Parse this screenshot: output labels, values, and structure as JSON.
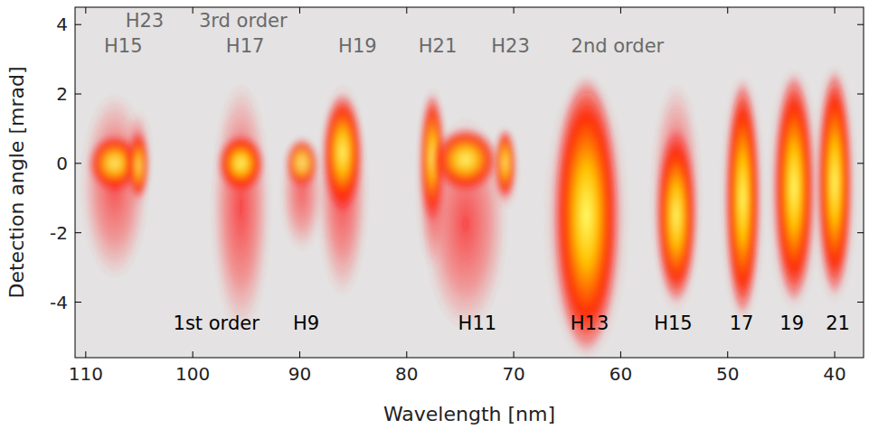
{
  "chart_data": {
    "type": "spectral_image",
    "x_label": "Wavelength [nm]",
    "y_label": "Detection angle [mrad]",
    "xlim": [
      111,
      37.3
    ],
    "ylim": [
      -5.6,
      4.5
    ],
    "xticks": [
      110,
      100,
      90,
      80,
      70,
      60,
      50,
      40
    ],
    "yticks": [
      -4,
      -2,
      0,
      2,
      4
    ],
    "peaks": [
      {
        "wavelength": 107.3,
        "width": 4,
        "angle_top": 2.0,
        "angle_bottom": -3.3,
        "core_top": 0.6,
        "core_bottom": -0.6,
        "intensity": 0.8
      },
      {
        "wavelength": 105.1,
        "width": 1.5,
        "angle_top": 1.5,
        "angle_bottom": -1.2,
        "core_top": 0.7,
        "core_bottom": -0.8,
        "intensity": 0.7
      },
      {
        "wavelength": 95.5,
        "width": 3.5,
        "angle_top": 2.3,
        "angle_bottom": -4.8,
        "core_top": 0.6,
        "core_bottom": -0.6,
        "intensity": 0.9
      },
      {
        "wavelength": 89.8,
        "width": 2.5,
        "angle_top": 0.8,
        "angle_bottom": -2.5,
        "core_top": 0.5,
        "core_bottom": -0.5,
        "intensity": 0.6
      },
      {
        "wavelength": 86.0,
        "width": 3,
        "angle_top": 2.3,
        "angle_bottom": -3.8,
        "core_top": 1.8,
        "core_bottom": -1.2,
        "intensity": 0.9
      },
      {
        "wavelength": 77.6,
        "width": 1.8,
        "angle_top": 2.2,
        "angle_bottom": -3.0,
        "core_top": 1.8,
        "core_bottom": -1.5,
        "intensity": 0.8
      },
      {
        "wavelength": 74.5,
        "width": 5,
        "angle_top": 1.3,
        "angle_bottom": -4.8,
        "core_top": 0.8,
        "core_bottom": -0.6,
        "intensity": 0.85
      },
      {
        "wavelength": 70.8,
        "width": 1.5,
        "angle_top": 0.9,
        "angle_bottom": -1.3,
        "core_top": 0.8,
        "core_bottom": -0.8,
        "intensity": 0.75
      },
      {
        "wavelength": 63.2,
        "width": 5,
        "angle_top": 2.5,
        "angle_bottom": -5.6,
        "core_top": 2.3,
        "core_bottom": -5.3,
        "intensity": 1
      },
      {
        "wavelength": 54.8,
        "width": 3,
        "angle_top": 2.3,
        "angle_bottom": -4.3,
        "core_top": 0.8,
        "core_bottom": -3.8,
        "intensity": 0.95
      },
      {
        "wavelength": 48.6,
        "width": 2.5,
        "angle_top": 2.5,
        "angle_bottom": -4.5,
        "core_top": 2.2,
        "core_bottom": -4.2,
        "intensity": 1
      },
      {
        "wavelength": 43.8,
        "width": 3,
        "angle_top": 2.7,
        "angle_bottom": -4.2,
        "core_top": 2.4,
        "core_bottom": -3.8,
        "intensity": 1
      },
      {
        "wavelength": 40.0,
        "width": 2.5,
        "angle_top": 2.8,
        "angle_bottom": -4.0,
        "core_top": 2.5,
        "core_bottom": -3.6,
        "intensity": 1
      }
    ],
    "annotations": [
      {
        "text": "H23",
        "x": 104.5,
        "y": 4.14,
        "color": "#6a6a6a"
      },
      {
        "text": "3rd order",
        "x": 95.3,
        "y": 4.14,
        "color": "#6a6a6a"
      },
      {
        "text": "H15",
        "x": 106.5,
        "y": 3.41,
        "color": "#6a6a6a"
      },
      {
        "text": "H17",
        "x": 95.1,
        "y": 3.41,
        "color": "#6a6a6a"
      },
      {
        "text": "H19",
        "x": 84.6,
        "y": 3.41,
        "color": "#6a6a6a"
      },
      {
        "text": "H21",
        "x": 77.1,
        "y": 3.41,
        "color": "#6a6a6a"
      },
      {
        "text": "H23",
        "x": 70.3,
        "y": 3.41,
        "color": "#6a6a6a"
      },
      {
        "text": "2nd order",
        "x": 60.3,
        "y": 3.41,
        "color": "#6a6a6a"
      },
      {
        "text": "1st order",
        "x": 97.8,
        "y": -4.58,
        "color": "#000000"
      },
      {
        "text": "H9",
        "x": 89.4,
        "y": -4.58,
        "color": "#000000"
      },
      {
        "text": "H11",
        "x": 73.4,
        "y": -4.58,
        "color": "#000000"
      },
      {
        "text": "H13",
        "x": 62.9,
        "y": -4.58,
        "color": "#000000"
      },
      {
        "text": "H15",
        "x": 55.1,
        "y": -4.58,
        "color": "#000000"
      },
      {
        "text": "17",
        "x": 48.7,
        "y": -4.58,
        "color": "#000000"
      },
      {
        "text": "19",
        "x": 44.0,
        "y": -4.58,
        "color": "#000000"
      },
      {
        "text": "21",
        "x": 39.7,
        "y": -4.58,
        "color": "#000000"
      }
    ]
  }
}
